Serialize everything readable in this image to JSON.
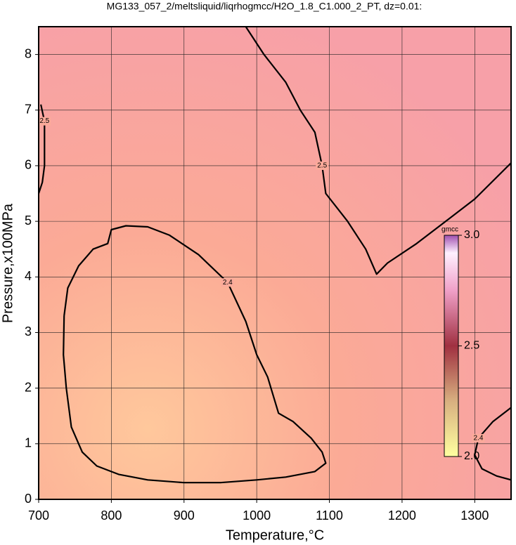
{
  "chart_data": {
    "type": "contour",
    "title": "MG133_057_2/meltsliquid/liqrhogmcc/H2O_1.8_C1.000_2_PT, dz=0.01:",
    "x_label": "Temperature,°C",
    "y_label": "Pressure,x100MPa",
    "xlim": [
      700,
      1350
    ],
    "ylim": [
      0,
      8.5
    ],
    "xticks": [
      700,
      800,
      900,
      1000,
      1100,
      1200,
      1300
    ],
    "yticks": [
      0,
      1,
      2,
      3,
      4,
      5,
      6,
      7,
      8
    ],
    "grid": true,
    "contours": [
      {
        "level": 2.4,
        "x": [
          735,
          740,
          755,
          775,
          795,
          800,
          820,
          850,
          880,
          920,
          960,
          985,
          1000,
          1015,
          1030,
          1050,
          1075,
          1090,
          1095,
          1080,
          1040,
          1000,
          950,
          900,
          850,
          810,
          780,
          760,
          745,
          738,
          734,
          735
        ],
        "y": [
          3.3,
          3.8,
          4.2,
          4.5,
          4.6,
          4.85,
          4.92,
          4.9,
          4.75,
          4.4,
          3.9,
          3.2,
          2.6,
          2.2,
          1.55,
          1.4,
          1.1,
          0.85,
          0.65,
          0.5,
          0.4,
          0.35,
          0.3,
          0.3,
          0.35,
          0.45,
          0.6,
          0.85,
          1.3,
          2.0,
          2.6,
          3.3
        ]
      },
      {
        "level": 2.5,
        "x": [
          985,
          1010,
          1040,
          1060,
          1080,
          1090,
          1095,
          1125,
          1150,
          1165,
          1180,
          1220,
          1260,
          1300,
          1350
        ],
        "y": [
          8.5,
          8.0,
          7.5,
          7.0,
          6.6,
          6.0,
          5.5,
          5.0,
          4.5,
          4.05,
          4.25,
          4.6,
          5.0,
          5.4,
          6.05
        ]
      },
      {
        "level": 2.5,
        "x": [
          703,
          708,
          708,
          705,
          700
        ],
        "y": [
          7.1,
          6.8,
          6.0,
          5.7,
          5.5
        ]
      },
      {
        "level": 2.4,
        "x": [
          1350,
          1325,
          1305,
          1300,
          1310,
          1330,
          1350
        ],
        "y": [
          1.65,
          1.4,
          1.1,
          0.8,
          0.55,
          0.42,
          0.35
        ]
      }
    ],
    "colorbar": {
      "title": "gmcc",
      "lim": [
        2.0,
        3.0
      ],
      "ticks": [
        {
          "value": 2.0,
          "label": "2.0"
        },
        2.5,
        {
          "value": 3.0,
          "label": "3.0"
        }
      ]
    }
  }
}
